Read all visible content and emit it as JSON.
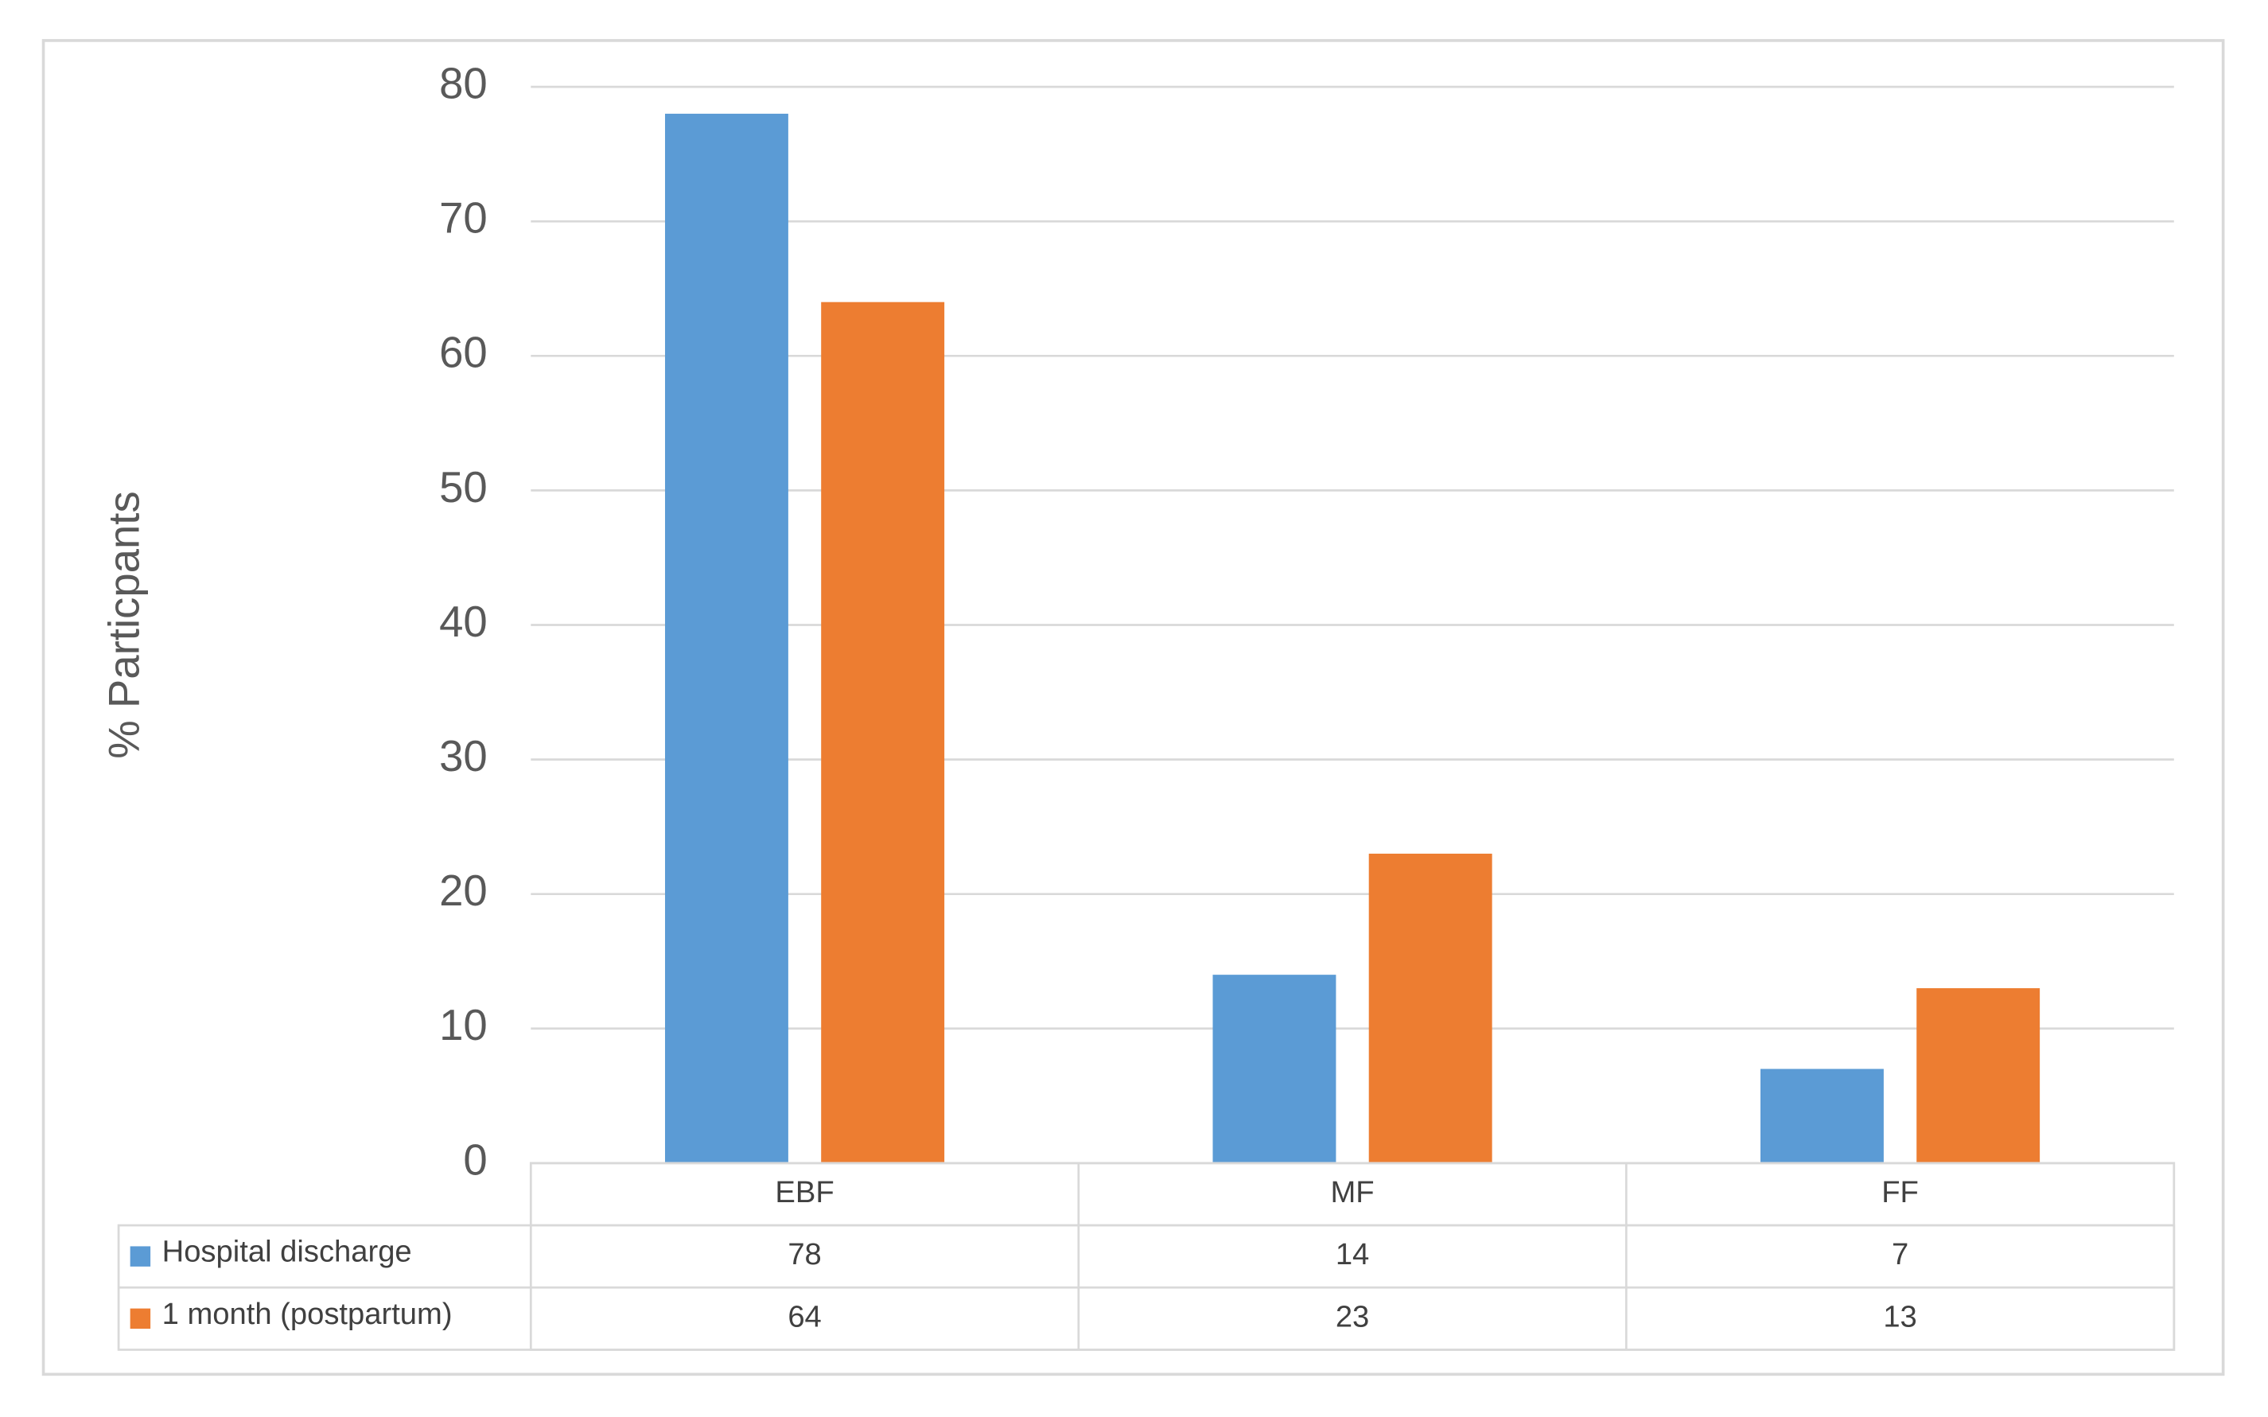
{
  "chart_data": {
    "type": "bar",
    "y_label": "% Particpants",
    "categories": [
      "EBF",
      "MF",
      "FF"
    ],
    "series": [
      {
        "name": "Hospital discharge",
        "color": "#5b9bd5",
        "values": [
          78,
          14,
          7
        ]
      },
      {
        "name": "1 month (postpartum)",
        "color": "#ed7d31",
        "values": [
          64,
          23,
          13
        ]
      }
    ],
    "ylim": [
      0,
      80
    ],
    "yticks": [
      0,
      10,
      20,
      30,
      40,
      50,
      60,
      70,
      80
    ],
    "grid": true,
    "data_table": true
  }
}
